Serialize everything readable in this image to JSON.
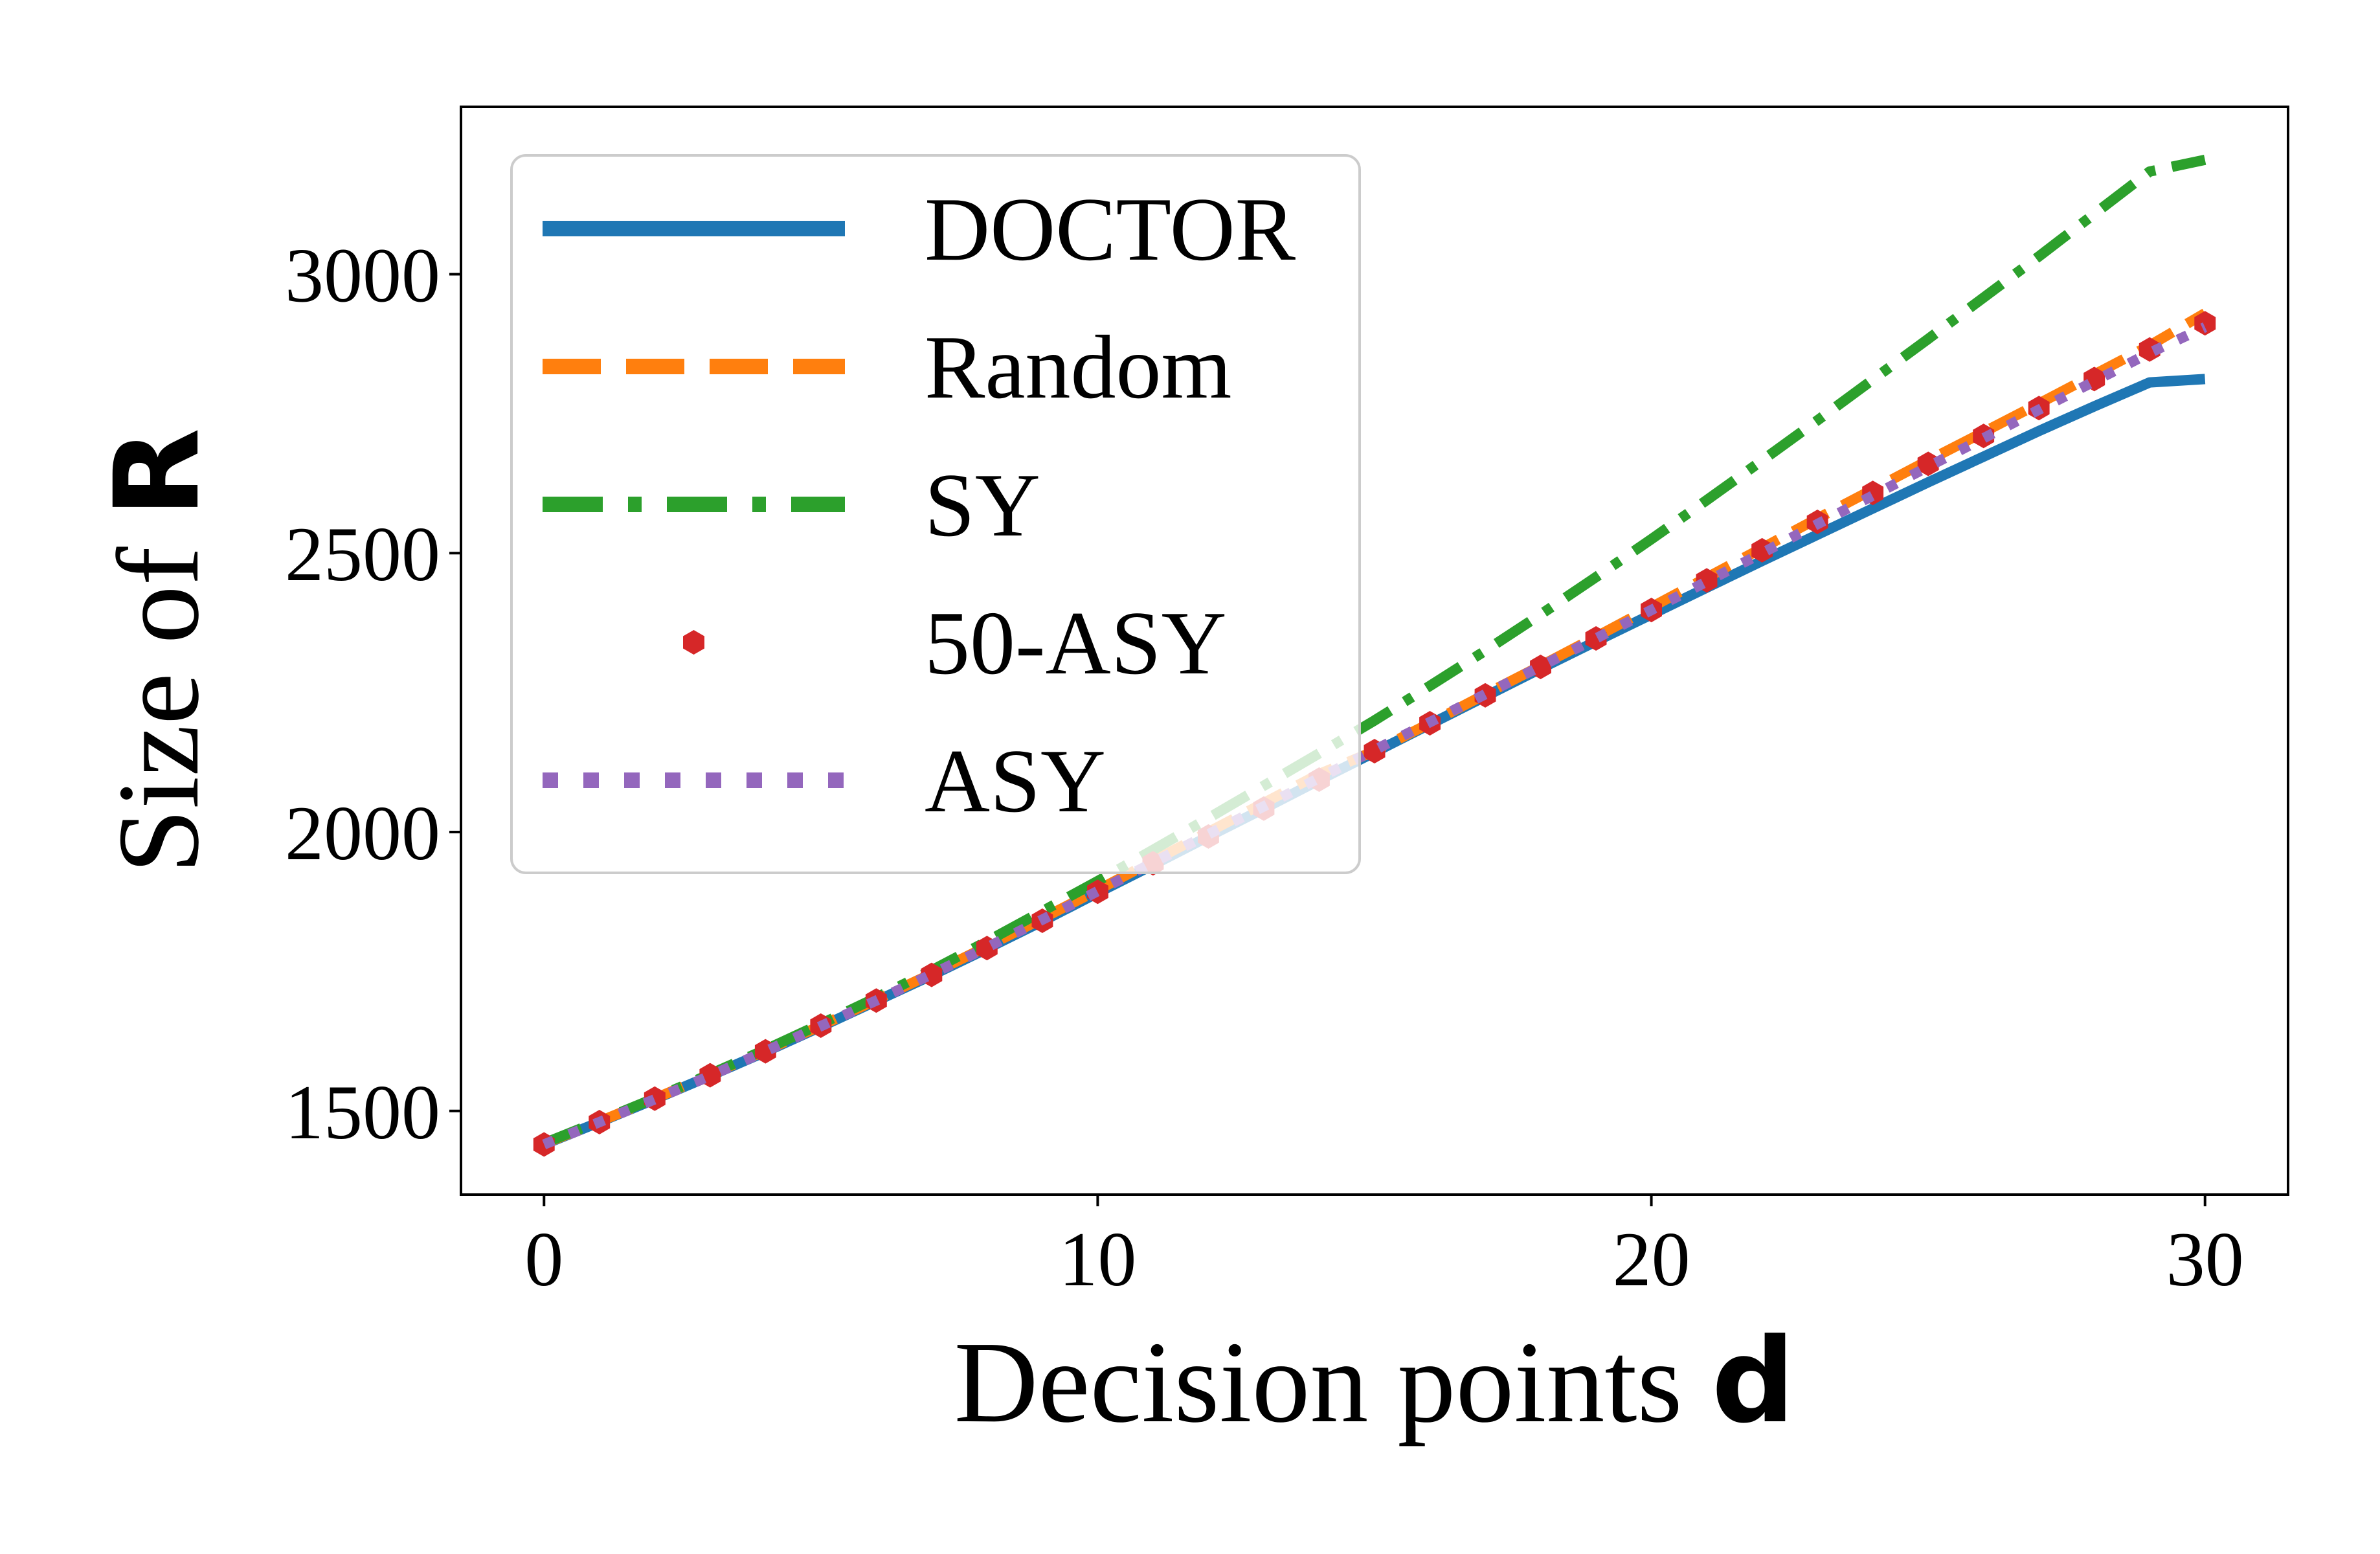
{
  "chart_data": {
    "type": "line",
    "xlabel": "Decision points",
    "xlabel_symbol": "d",
    "ylabel": "Size of",
    "ylabel_symbol": "R",
    "xlim": [
      -1.5,
      31.5
    ],
    "ylim": [
      1350,
      3300
    ],
    "xticks": [
      0,
      10,
      20,
      30
    ],
    "yticks": [
      1500,
      2000,
      2500,
      3000
    ],
    "grid": false,
    "legend_position": "upper-left",
    "x": [
      0,
      1,
      2,
      3,
      4,
      5,
      6,
      7,
      8,
      9,
      10,
      11,
      12,
      13,
      14,
      15,
      16,
      17,
      18,
      19,
      20,
      21,
      22,
      23,
      24,
      25,
      26,
      27,
      28,
      29,
      30
    ],
    "series": [
      {
        "name": "DOCTOR",
        "color": "#1f77b4",
        "style": "solid",
        "values": [
          1440,
          1480,
          1521,
          1563,
          1606,
          1651,
          1697,
          1743,
          1791,
          1840,
          1891,
          1941,
          1992,
          2042,
          2093,
          2143,
          2193,
          2243,
          2293,
          2342,
          2390,
          2438,
          2486,
          2533,
          2580,
          2627,
          2673,
          2719,
          2763,
          2806,
          2812
        ]
      },
      {
        "name": "Random",
        "color": "#ff7f0e",
        "style": "dashed",
        "values": [
          1441,
          1481,
          1522,
          1565,
          1608,
          1653,
          1699,
          1746,
          1795,
          1845,
          1896,
          1948,
          2000,
          2052,
          2104,
          2145,
          2195,
          2247,
          2298,
          2350,
          2403,
          2456,
          2509,
          2562,
          2614,
          2666,
          2717,
          2768,
          2820,
          2872,
          2930
        ]
      },
      {
        "name": "SY",
        "color": "#2ca02c",
        "style": "dashdot",
        "values": [
          1442,
          1482,
          1523,
          1566,
          1610,
          1656,
          1703,
          1752,
          1804,
          1858,
          1912,
          1968,
          2025,
          2083,
          2141,
          2200,
          2262,
          2325,
          2390,
          2457,
          2525,
          2595,
          2666,
          2738,
          2811,
          2884,
          2958,
          3032,
          3108,
          3184,
          3205
        ]
      },
      {
        "name": "50-ASY",
        "color": "#d62728",
        "style": "markers",
        "values": [
          1440,
          1480,
          1522,
          1564,
          1607,
          1653,
          1698,
          1744,
          1792,
          1841,
          1893,
          1944,
          1992,
          2042,
          2094,
          2145,
          2195,
          2245,
          2296,
          2347,
          2398,
          2451,
          2505,
          2556,
          2608,
          2660,
          2710,
          2760,
          2812,
          2865,
          2912
        ]
      },
      {
        "name": "ASY",
        "color": "#9467bd",
        "style": "dotted",
        "values": [
          1440,
          1480,
          1521,
          1563,
          1607,
          1652,
          1698,
          1745,
          1793,
          1843,
          1894,
          1945,
          1996,
          2046,
          2097,
          2147,
          2197,
          2247,
          2297,
          2347,
          2398,
          2449,
          2500,
          2552,
          2603,
          2655,
          2706,
          2757,
          2808,
          2859,
          2905
        ]
      }
    ]
  }
}
